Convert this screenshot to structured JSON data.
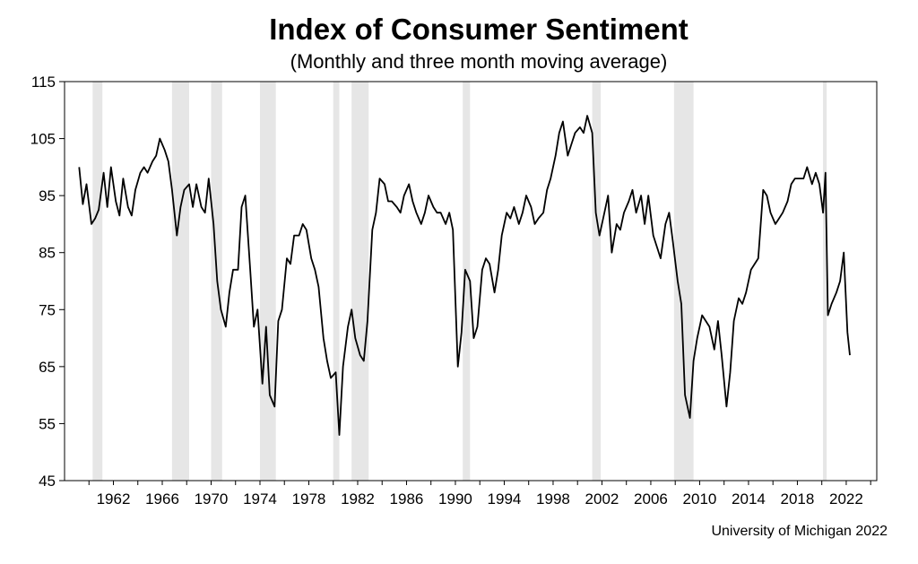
{
  "chart_data": {
    "type": "line",
    "title": "Index of Consumer Sentiment",
    "subtitle": "(Monthly and three month moving average)",
    "source": "University of Michigan 2022",
    "ylim": [
      45,
      115
    ],
    "yticks": [
      45,
      55,
      65,
      75,
      85,
      95,
      105,
      115
    ],
    "xlim": [
      1958.0,
      2024.5
    ],
    "xticks": [
      1962,
      1966,
      1970,
      1974,
      1978,
      1982,
      1986,
      1990,
      1994,
      1998,
      2002,
      2006,
      2010,
      2014,
      2018,
      2022
    ],
    "grid": false,
    "legend": "none",
    "colors": {
      "line": "#000000",
      "recession": "#e6e6e6"
    },
    "recessions": [
      [
        1960.3,
        1961.1
      ],
      [
        1966.8,
        1968.2
      ],
      [
        1970.0,
        1970.9
      ],
      [
        1974.0,
        1975.3
      ],
      [
        1980.0,
        1980.5
      ],
      [
        1981.5,
        1982.9
      ],
      [
        1990.6,
        1991.2
      ],
      [
        2001.2,
        2001.9
      ],
      [
        2007.9,
        2009.5
      ],
      [
        2020.1,
        2020.4
      ]
    ],
    "series": [
      {
        "style": "solid",
        "x": [
          1959.2,
          1959.5,
          1959.8,
          1960.2,
          1960.5,
          1960.8,
          1961.2,
          1961.5,
          1961.8,
          1962.2,
          1962.5,
          1962.8,
          1963.2,
          1963.5,
          1963.8,
          1964.2,
          1964.5,
          1964.8,
          1965.2,
          1965.5,
          1965.8,
          1966.2,
          1966.5,
          1966.8,
          1967.2,
          1967.5,
          1967.8,
          1968.2,
          1968.5,
          1968.8,
          1969.2,
          1969.5,
          1969.8,
          1970.2,
          1970.5,
          1970.8,
          1971.2,
          1971.5,
          1971.8,
          1972.2,
          1972.5,
          1972.8,
          1973.2,
          1973.5,
          1973.8,
          1974.2,
          1974.5,
          1974.8,
          1975.2,
          1975.5,
          1975.8,
          1976.2,
          1976.5,
          1976.8,
          1977.2,
          1977.5,
          1977.8,
          1978.2,
          1978.5,
          1978.8,
          1979.2,
          1979.5,
          1979.8,
          1980.2,
          1980.5,
          1980.8,
          1981.2,
          1981.5,
          1981.8,
          1982.2,
          1982.5,
          1982.8,
          1983.2,
          1983.5,
          1983.8,
          1984.2,
          1984.5,
          1984.8,
          1985.2,
          1985.5,
          1985.8,
          1986.2,
          1986.5,
          1986.8,
          1987.2,
          1987.5,
          1987.8,
          1988.2,
          1988.5,
          1988.8,
          1989.2,
          1989.5,
          1989.8,
          1990.2,
          1990.5,
          1990.8,
          1991.2,
          1991.5,
          1991.8,
          1992.2,
          1992.5,
          1992.8,
          1993.2,
          1993.5,
          1993.8,
          1994.2,
          1994.5,
          1994.8,
          1995.2,
          1995.5,
          1995.8,
          1996.2,
          1996.5,
          1996.8,
          1997.2,
          1997.5,
          1997.8,
          1998.2,
          1998.5,
          1998.8,
          1999.2,
          1999.5,
          1999.8,
          2000.2,
          2000.5,
          2000.8,
          2001.2,
          2001.5,
          2001.8,
          2002.2,
          2002.5,
          2002.8,
          2003.2,
          2003.5,
          2003.8,
          2004.2,
          2004.5,
          2004.8,
          2005.2,
          2005.5,
          2005.8,
          2006.2,
          2006.5,
          2006.8,
          2007.2,
          2007.5,
          2007.8,
          2008.2,
          2008.5,
          2008.8,
          2009.2,
          2009.5,
          2009.8,
          2010.2,
          2010.5,
          2010.8,
          2011.2,
          2011.5,
          2011.8,
          2012.2,
          2012.5,
          2012.8,
          2013.2,
          2013.5,
          2013.8,
          2014.2,
          2014.5,
          2014.8,
          2015.2,
          2015.5,
          2015.8,
          2016.2,
          2016.5,
          2016.8,
          2017.2,
          2017.5,
          2017.8,
          2018.2,
          2018.5,
          2018.8,
          2019.2,
          2019.5,
          2019.8,
          2020.1,
          2020.3,
          2020.5,
          2020.8,
          2021.2,
          2021.5,
          2021.8,
          2022.1,
          2022.3
        ],
        "values": [
          100,
          93.5,
          97,
          90,
          91,
          92.5,
          99,
          93,
          100,
          94,
          91.5,
          98,
          93,
          91.5,
          96,
          99,
          100,
          99,
          101,
          102,
          105,
          103,
          101,
          96,
          88,
          93,
          96,
          97,
          93,
          97,
          93,
          92,
          98,
          90,
          80,
          75,
          72,
          78,
          82,
          82,
          93,
          95,
          82,
          72,
          75,
          62,
          72,
          60,
          58,
          73,
          75,
          84,
          83,
          88,
          88,
          90,
          89,
          84,
          82,
          79,
          70,
          66,
          63,
          64,
          53,
          65,
          72,
          75,
          70,
          67,
          66,
          73,
          89,
          92,
          98,
          97,
          94,
          94,
          93,
          92,
          95,
          97,
          94,
          92,
          90,
          92,
          95,
          93,
          92,
          92,
          90,
          92,
          89,
          65,
          71,
          82,
          80,
          70,
          72,
          82,
          84,
          83,
          78,
          82,
          88,
          92,
          91,
          93,
          90,
          92,
          95,
          93,
          90,
          91,
          92,
          96,
          98,
          102,
          106,
          108,
          102,
          104,
          106,
          107,
          106,
          109,
          106,
          92,
          88,
          92,
          95,
          85,
          90,
          89,
          92,
          94,
          96,
          92,
          95,
          90,
          95,
          88,
          86,
          84,
          90,
          92,
          87,
          80,
          76,
          60,
          56,
          66,
          70,
          74,
          73,
          72,
          68,
          73,
          67,
          58,
          64,
          73,
          77,
          76,
          78,
          82,
          83,
          84,
          96,
          95,
          92,
          90,
          91,
          92,
          94,
          97,
          98,
          98,
          98,
          100,
          97,
          99,
          97,
          92,
          99,
          74,
          76,
          78,
          80,
          85,
          71,
          67
        ]
      }
    ]
  }
}
